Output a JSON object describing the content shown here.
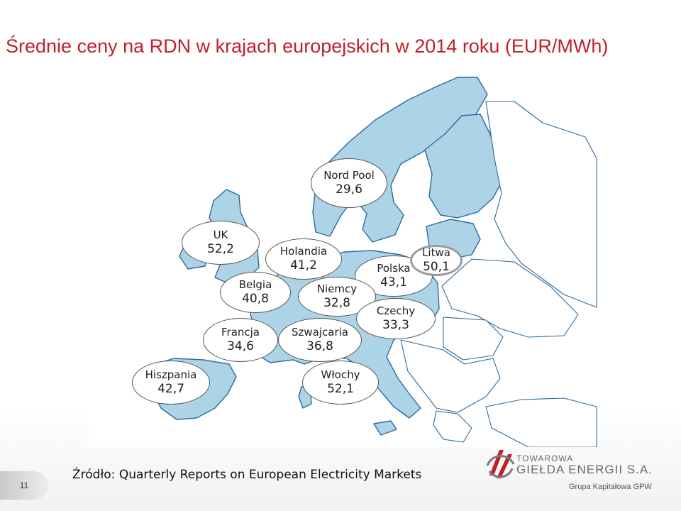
{
  "title": "Średnie ceny na RDN w krajach europejskich w 2014 roku (EUR/MWh)",
  "colors": {
    "title": "#c0202a",
    "highlight_fill": "#acd3e6",
    "other_fill": "#ffffff",
    "border": "#2e6a9c"
  },
  "markets": [
    {
      "name": "Nord Pool",
      "value": "29,6"
    },
    {
      "name": "UK",
      "value": "52,2"
    },
    {
      "name": "Holandia",
      "value": "41,2"
    },
    {
      "name": "Polska",
      "value": "43,1"
    },
    {
      "name": "Litwa",
      "value": "50,1"
    },
    {
      "name": "Belgia",
      "value": "40,8"
    },
    {
      "name": "Niemcy",
      "value": "32,8"
    },
    {
      "name": "Czechy",
      "value": "33,3"
    },
    {
      "name": "Francja",
      "value": "34,6"
    },
    {
      "name": "Szwajcaria",
      "value": "36,8"
    },
    {
      "name": "Hiszpania",
      "value": "42,7"
    },
    {
      "name": "Włochy",
      "value": "52,1"
    }
  ],
  "source": "Źródło: Quarterly Reports on European Electricity Markets",
  "page_number": "11",
  "logo": {
    "line1": "TOWAROWA",
    "line2": "GIEŁDA ENERGII S.A.",
    "tagline": "Grupa Kapitałowa GPW"
  }
}
